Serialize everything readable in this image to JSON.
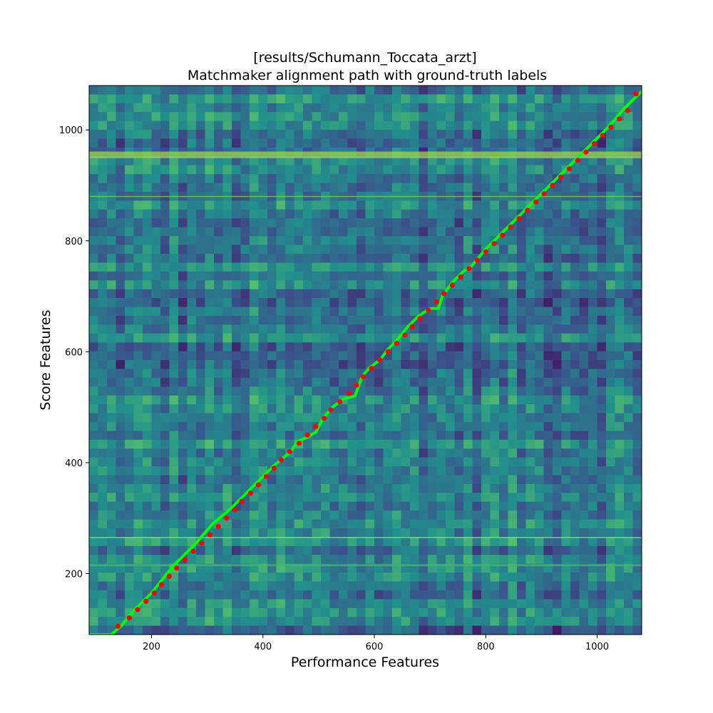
{
  "chart_data": {
    "type": "heatmap",
    "title": "[results/Schumann_Toccata_arzt]",
    "subtitle": "Matchmaker alignment path with ground-truth labels",
    "xlabel": "Performance Features",
    "ylabel": "Score Features",
    "xlim": [
      88,
      1080
    ],
    "ylim": [
      90,
      1080
    ],
    "x_ticks": [
      200,
      400,
      600,
      800,
      1000
    ],
    "y_ticks": [
      200,
      400,
      600,
      800,
      1000
    ],
    "colormap": "viridis",
    "grid": false,
    "colors": {
      "path": "#00ff00",
      "labels": "#ff0000",
      "dark": "#440154",
      "mid": "#21908d",
      "bright": "#fde725"
    },
    "series": [
      {
        "type": "line",
        "x": [
          88,
          128,
          145,
          170,
          200,
          240,
          280,
          310,
          340,
          380,
          420,
          450,
          462,
          478,
          495,
          508,
          525,
          545,
          565,
          578,
          590,
          610,
          625,
          640,
          660,
          680,
          700,
          715,
          722,
          740,
          760,
          775,
          800,
          830,
          860,
          900,
          940,
          980,
          1020,
          1050,
          1080
        ],
        "y": [
          90,
          90,
          105,
          135,
          165,
          215,
          255,
          290,
          315,
          355,
          395,
          420,
          438,
          445,
          455,
          480,
          500,
          515,
          520,
          555,
          570,
          585,
          605,
          620,
          645,
          665,
          678,
          678,
          700,
          725,
          745,
          755,
          785,
          815,
          845,
          885,
          925,
          965,
          1005,
          1040,
          1070
        ]
      },
      {
        "type": "scatter",
        "x": [
          140,
          160,
          175,
          190,
          205,
          218,
          232,
          245,
          260,
          275,
          290,
          305,
          320,
          335,
          350,
          362,
          378,
          392,
          406,
          420,
          433,
          448,
          465,
          480,
          495,
          510,
          522,
          538,
          555,
          568,
          580,
          595,
          610,
          625,
          640,
          655,
          668,
          682,
          697,
          712,
          725,
          740,
          755,
          770,
          785,
          800,
          815,
          830,
          845,
          860,
          875,
          890,
          905,
          920,
          935,
          950,
          965,
          980,
          995,
          1010,
          1025,
          1040,
          1055,
          1070
        ],
        "y": [
          105,
          120,
          135,
          150,
          165,
          180,
          195,
          210,
          225,
          240,
          255,
          270,
          285,
          300,
          315,
          330,
          345,
          360,
          375,
          390,
          405,
          420,
          435,
          450,
          465,
          480,
          495,
          510,
          525,
          540,
          555,
          570,
          585,
          600,
          615,
          630,
          645,
          660,
          675,
          690,
          705,
          720,
          735,
          750,
          765,
          780,
          795,
          810,
          825,
          840,
          855,
          870,
          885,
          900,
          915,
          930,
          945,
          960,
          975,
          990,
          1005,
          1020,
          1035,
          1065
        ]
      }
    ]
  }
}
